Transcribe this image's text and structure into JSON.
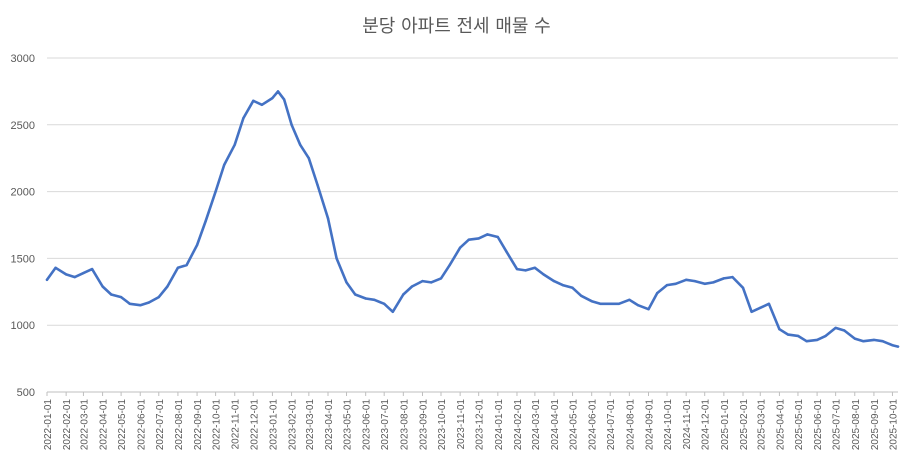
{
  "chart_data": {
    "type": "line",
    "title": "분당 아파트 전세 매물 수",
    "xlabel": "",
    "ylabel": "",
    "ylim": [
      500,
      3000
    ],
    "yticks": [
      500,
      1000,
      1500,
      2000,
      2500,
      3000
    ],
    "grid": true,
    "legend": "none",
    "x_tick_labels": [
      "2022-01-01",
      "2022-02-01",
      "2022-03-01",
      "2022-04-01",
      "2022-05-01",
      "2022-06-01",
      "2022-07-01",
      "2022-08-01",
      "2022-09-01",
      "2022-10-01",
      "2022-11-01",
      "2022-12-01",
      "2023-01-01",
      "2023-02-01",
      "2023-03-01",
      "2023-04-01",
      "2023-05-01",
      "2023-06-01",
      "2023-07-01",
      "2023-08-01",
      "2023-09-01",
      "2023-10-01",
      "2023-11-01",
      "2023-12-01",
      "2024-01-01",
      "2024-02-01",
      "2024-03-01",
      "2024-04-01",
      "2024-05-01",
      "2024-06-01",
      "2024-07-01",
      "2024-08-01",
      "2024-09-01",
      "2024-10-01",
      "2024-11-01",
      "2024-12-01",
      "2025-01-01",
      "2025-02-01",
      "2025-03-01",
      "2025-04-01",
      "2025-05-01",
      "2025-06-01",
      "2025-07-01",
      "2025-08-01",
      "2025-09-01",
      "2025-10-01"
    ],
    "series": [
      {
        "color": "#4472c4",
        "x": [
          "2022-01-01",
          "2022-01-15",
          "2022-02-01",
          "2022-02-15",
          "2022-03-01",
          "2022-03-15",
          "2022-04-01",
          "2022-04-15",
          "2022-05-01",
          "2022-05-15",
          "2022-06-01",
          "2022-06-15",
          "2022-07-01",
          "2022-07-15",
          "2022-08-01",
          "2022-08-15",
          "2022-09-01",
          "2022-09-15",
          "2022-10-01",
          "2022-10-15",
          "2022-11-01",
          "2022-11-15",
          "2022-12-01",
          "2022-12-15",
          "2023-01-01",
          "2023-01-10",
          "2023-01-20",
          "2023-02-01",
          "2023-02-15",
          "2023-03-01",
          "2023-03-15",
          "2023-04-01",
          "2023-04-15",
          "2023-05-01",
          "2023-05-15",
          "2023-06-01",
          "2023-06-15",
          "2023-07-01",
          "2023-07-15",
          "2023-08-01",
          "2023-08-15",
          "2023-09-01",
          "2023-09-15",
          "2023-10-01",
          "2023-10-15",
          "2023-11-01",
          "2023-11-15",
          "2023-12-01",
          "2023-12-15",
          "2024-01-01",
          "2024-01-15",
          "2024-02-01",
          "2024-02-15",
          "2024-03-01",
          "2024-03-15",
          "2024-04-01",
          "2024-04-15",
          "2024-05-01",
          "2024-05-15",
          "2024-06-01",
          "2024-06-15",
          "2024-07-01",
          "2024-07-15",
          "2024-08-01",
          "2024-08-15",
          "2024-09-01",
          "2024-09-15",
          "2024-10-01",
          "2024-10-15",
          "2024-11-01",
          "2024-11-15",
          "2024-12-01",
          "2024-12-15",
          "2025-01-01",
          "2025-01-15",
          "2025-02-01",
          "2025-02-15",
          "2025-03-01",
          "2025-03-15",
          "2025-04-01",
          "2025-04-15",
          "2025-05-01",
          "2025-05-15",
          "2025-06-01",
          "2025-06-15",
          "2025-07-01",
          "2025-07-15",
          "2025-08-01",
          "2025-08-15",
          "2025-09-01",
          "2025-09-15",
          "2025-10-01",
          "2025-10-10"
        ],
        "values": [
          1340,
          1430,
          1380,
          1360,
          1390,
          1420,
          1290,
          1230,
          1210,
          1160,
          1150,
          1170,
          1210,
          1290,
          1430,
          1450,
          1600,
          1780,
          2000,
          2200,
          2350,
          2550,
          2680,
          2650,
          2700,
          2750,
          2690,
          2500,
          2350,
          2250,
          2050,
          1800,
          1500,
          1320,
          1230,
          1200,
          1190,
          1160,
          1100,
          1230,
          1290,
          1330,
          1320,
          1350,
          1450,
          1580,
          1640,
          1650,
          1680,
          1660,
          1550,
          1420,
          1410,
          1430,
          1380,
          1330,
          1300,
          1280,
          1220,
          1180,
          1160,
          1160,
          1160,
          1190,
          1150,
          1120,
          1240,
          1300,
          1310,
          1340,
          1330,
          1310,
          1320,
          1350,
          1360,
          1280,
          1100,
          1130,
          1160,
          970,
          930,
          920,
          880,
          890,
          920,
          980,
          960,
          900,
          880,
          890,
          880,
          850,
          840
        ]
      }
    ]
  }
}
